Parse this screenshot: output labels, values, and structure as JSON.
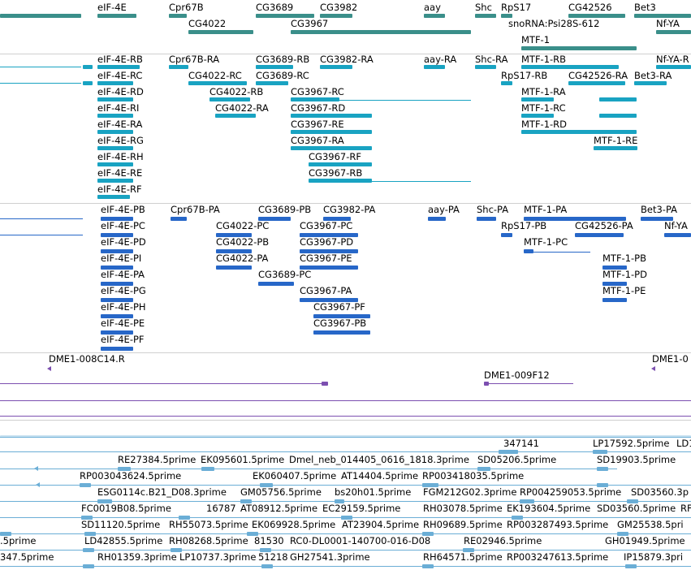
{
  "colors": {
    "gene": "#3a8f8a",
    "mrna": "#19a3c2",
    "protein": "#2767c8",
    "clone": "#7c4fb0",
    "est": "#6baed6",
    "separator": "#d0d0d0"
  },
  "tracks": [
    {
      "name": "gene-track",
      "color": "gene",
      "labels": [
        "eIF-4E",
        "Cpr67B",
        "CG3689",
        "CG3982",
        "aay",
        "Shc",
        "RpS17",
        "CG42526",
        "Bet3",
        "CG4022",
        "CG3967",
        "snoRNA:Psi28S-612",
        "Nf-YA",
        "MTF-1"
      ],
      "features": []
    },
    {
      "name": "transcript-track",
      "color": "mrna",
      "labels": [
        "eIF-4E-RB",
        "Cpr67B-RA",
        "CG3689-RB",
        "CG3982-RA",
        "aay-RA",
        "Shc-RA",
        "MTF-1-RB",
        "Nf-YA-R",
        "eIF-4E-RC",
        "CG4022-RC",
        "CG3689-RC",
        "RpS17-RB",
        "CG42526-RA",
        "Bet3-RA",
        "eIF-4E-RD",
        "CG4022-RB",
        "CG3967-RC",
        "MTF-1-RA",
        "eIF-4E-RI",
        "CG4022-RA",
        "CG3967-RD",
        "MTF-1-RC",
        "eIF-4E-RA",
        "CG3967-RE",
        "MTF-1-RD",
        "eIF-4E-RG",
        "CG3967-RA",
        "MTF-1-RE",
        "eIF-4E-RH",
        "CG3967-RF",
        "eIF-4E-RE",
        "CG3967-RB",
        "eIF-4E-RF"
      ]
    },
    {
      "name": "protein-track",
      "color": "protein",
      "labels": [
        "eIF-4E-PB",
        "Cpr67B-PA",
        "CG3689-PB",
        "CG3982-PA",
        "aay-PA",
        "Shc-PA",
        "MTF-1-PA",
        "Bet3-PA",
        "eIF-4E-PC",
        "CG4022-PC",
        "CG3967-PC",
        "RpS17-PB",
        "CG42526-PA",
        "Nf-YA",
        "eIF-4E-PD",
        "CG4022-PB",
        "CG3967-PD",
        "MTF-1-PC",
        "eIF-4E-PI",
        "CG4022-PA",
        "CG3967-PE",
        "MTF-1-PB",
        "eIF-4E-PA",
        "CG3689-PC",
        "MTF-1-PD",
        "eIF-4E-PG",
        "CG3967-PA",
        "MTF-1-PE",
        "eIF-4E-PH",
        "CG3967-PF",
        "eIF-4E-PE",
        "CG3967-PB",
        "eIF-4E-PF"
      ]
    },
    {
      "name": "clone-track",
      "color": "clone",
      "labels": [
        "DME1-008C14.R",
        "DME1-0",
        "DME1-009F12"
      ]
    },
    {
      "name": "est-track",
      "color": "est",
      "labels": [
        "347141",
        "LP17592.5prime",
        "LD1",
        "RE27384.5prime",
        "EK095601.5prime",
        "Dmel_neb_014405_0616_1818.3prime",
        "SD05206.5prime",
        "SD19903.5prime",
        "RP003043624.5prime",
        "EK060407.5prime",
        "AT14404.5prime",
        "RP003418035.5prime",
        "ESG0114c.B21_D08.3prime",
        "GM05756.5prime",
        "bs20h01.5prime",
        "FGM212G02.3prime",
        "RP004259053.5prime",
        "SD03560.3p",
        "FC0019B08.5prime",
        "16787",
        "AT08912.5prime",
        "EC29159.5prime",
        "RH03078.5prime",
        "EK193604.5prime",
        "SD03560.5prime",
        "RF",
        "SD11120.5prime",
        "RH55073.5prime",
        "EK069928.5prime",
        "AT23904.5prime",
        "RH09689.5prime",
        "RP003287493.5prime",
        "GM25538.5pri",
        ".5prime",
        "LD42855.5prime",
        "RH08268.5prime",
        "81530",
        "RC0-DL0001-140700-016-D08",
        "RE02946.5prime",
        "GH01949.5prime",
        "347.5prime",
        "RH01359.3prime",
        "LP10737.3prime",
        "51218",
        "GH27541.3prime",
        "RH64571.5prime",
        "RP003247613.5prime",
        "IP15879.3pri"
      ]
    }
  ]
}
